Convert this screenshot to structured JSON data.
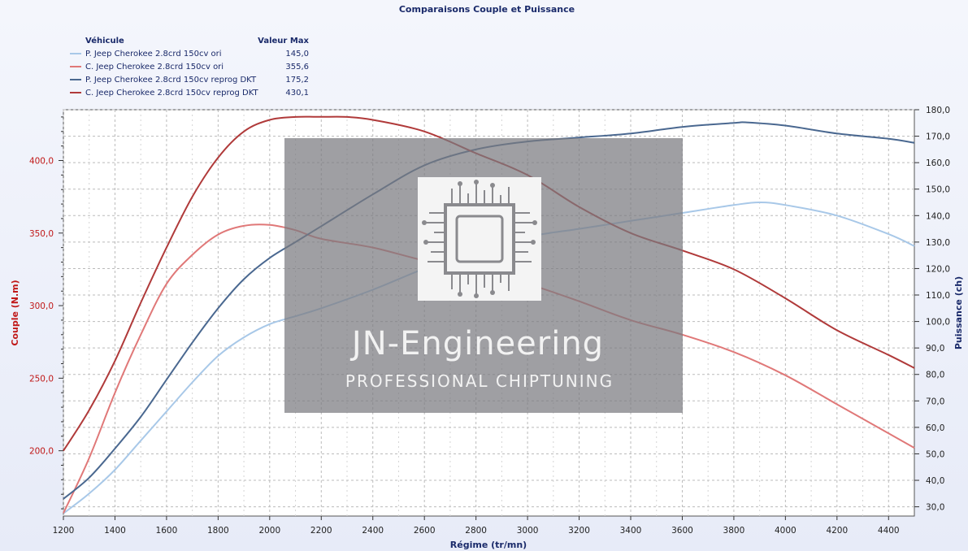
{
  "chart_data": {
    "type": "line",
    "title": "Comparaisons Couple et Puissance",
    "xlabel": "Régime (tr/mn)",
    "ylabel_left": "Couple (N.m)",
    "ylabel_right": "Puissance (ch)",
    "xlim": [
      1200,
      4500
    ],
    "ylim_left": [
      155,
      435
    ],
    "ylim_right": [
      26.5,
      180
    ],
    "x_ticks": [
      1200,
      1400,
      1600,
      1800,
      2000,
      2200,
      2400,
      2600,
      2800,
      3000,
      3200,
      3400,
      3600,
      3800,
      4000,
      4200,
      4400
    ],
    "y_left_ticks": [
      "200,0",
      "250,0",
      "300,0",
      "350,0",
      "400,0"
    ],
    "y_left_tick_values": [
      200,
      250,
      300,
      350,
      400
    ],
    "y_right_ticks": [
      "30,0",
      "40,0",
      "50,0",
      "60,0",
      "70,0",
      "80,0",
      "90,0",
      "100,0",
      "110,0",
      "120,0",
      "130,0",
      "140,0",
      "150,0",
      "160,0",
      "170,0",
      "180,0"
    ],
    "y_right_tick_values": [
      30,
      40,
      50,
      60,
      70,
      80,
      90,
      100,
      110,
      120,
      130,
      140,
      150,
      160,
      170,
      180
    ],
    "grid": true,
    "legend": {
      "placement": "top-left",
      "header_name": "Véhicule",
      "header_value": "Valeur Max"
    },
    "series": [
      {
        "name": "P. Jeep Cherokee 2.8crd 150cv ori",
        "max_label": "145,0",
        "axis": "right",
        "color": "#a8c8e8",
        "x": [
          1200,
          1300,
          1400,
          1500,
          1600,
          1700,
          1800,
          1900,
          2000,
          2100,
          2200,
          2400,
          2600,
          2800,
          3000,
          3200,
          3400,
          3600,
          3800,
          3900,
          4000,
          4200,
          4400,
          4500
        ],
        "y": [
          27.5,
          35,
          44,
          55,
          66,
          77,
          87,
          94,
          99,
          102,
          105,
          112,
          120,
          127,
          132,
          135,
          138,
          141,
          144,
          145,
          144,
          140,
          133,
          128.5
        ]
      },
      {
        "name": "C. Jeep Cherokee 2.8crd 150cv ori",
        "max_label": "355,6",
        "axis": "left",
        "color": "#e07878",
        "x": [
          1200,
          1300,
          1400,
          1500,
          1600,
          1700,
          1800,
          1900,
          2000,
          2100,
          2200,
          2400,
          2600,
          2800,
          3000,
          3200,
          3400,
          3600,
          3800,
          4000,
          4200,
          4400,
          4500
        ],
        "y": [
          157,
          195,
          240,
          280,
          315,
          335,
          349,
          355,
          355.6,
          352,
          346,
          340,
          331,
          324,
          315,
          303,
          290,
          280,
          268,
          252,
          232,
          212,
          202
        ]
      },
      {
        "name": "P. Jeep Cherokee 2.8crd 150cv reprog DKT",
        "max_label": "175,2",
        "axis": "right",
        "color": "#4a6890",
        "x": [
          1200,
          1300,
          1400,
          1500,
          1600,
          1700,
          1800,
          1900,
          2000,
          2100,
          2200,
          2400,
          2600,
          2800,
          3000,
          3200,
          3400,
          3600,
          3800,
          3850,
          4000,
          4200,
          4400,
          4500
        ],
        "y": [
          33,
          41,
          52,
          64,
          78,
          92,
          105,
          116,
          124,
          130,
          136,
          148,
          159,
          165,
          168,
          169.5,
          171,
          173.5,
          175,
          175.2,
          174,
          171,
          169,
          167.5
        ]
      },
      {
        "name": "C. Jeep Cherokee 2.8crd 150cv reprog DKT",
        "max_label": "430,1",
        "axis": "left",
        "color": "#b03a3a",
        "x": [
          1200,
          1300,
          1400,
          1500,
          1600,
          1700,
          1800,
          1900,
          2000,
          2100,
          2200,
          2300,
          2400,
          2600,
          2800,
          3000,
          3200,
          3400,
          3600,
          3800,
          4000,
          4200,
          4400,
          4500
        ],
        "y": [
          200,
          228,
          262,
          302,
          340,
          375,
          402,
          420,
          428,
          430,
          430.1,
          430,
          428,
          420,
          405,
          390,
          368,
          350,
          338,
          325,
          305,
          283,
          266,
          257
        ]
      }
    ]
  },
  "watermark": {
    "title": "JN-Engineering",
    "subtitle": "PROFESSIONAL CHIPTUNING"
  }
}
